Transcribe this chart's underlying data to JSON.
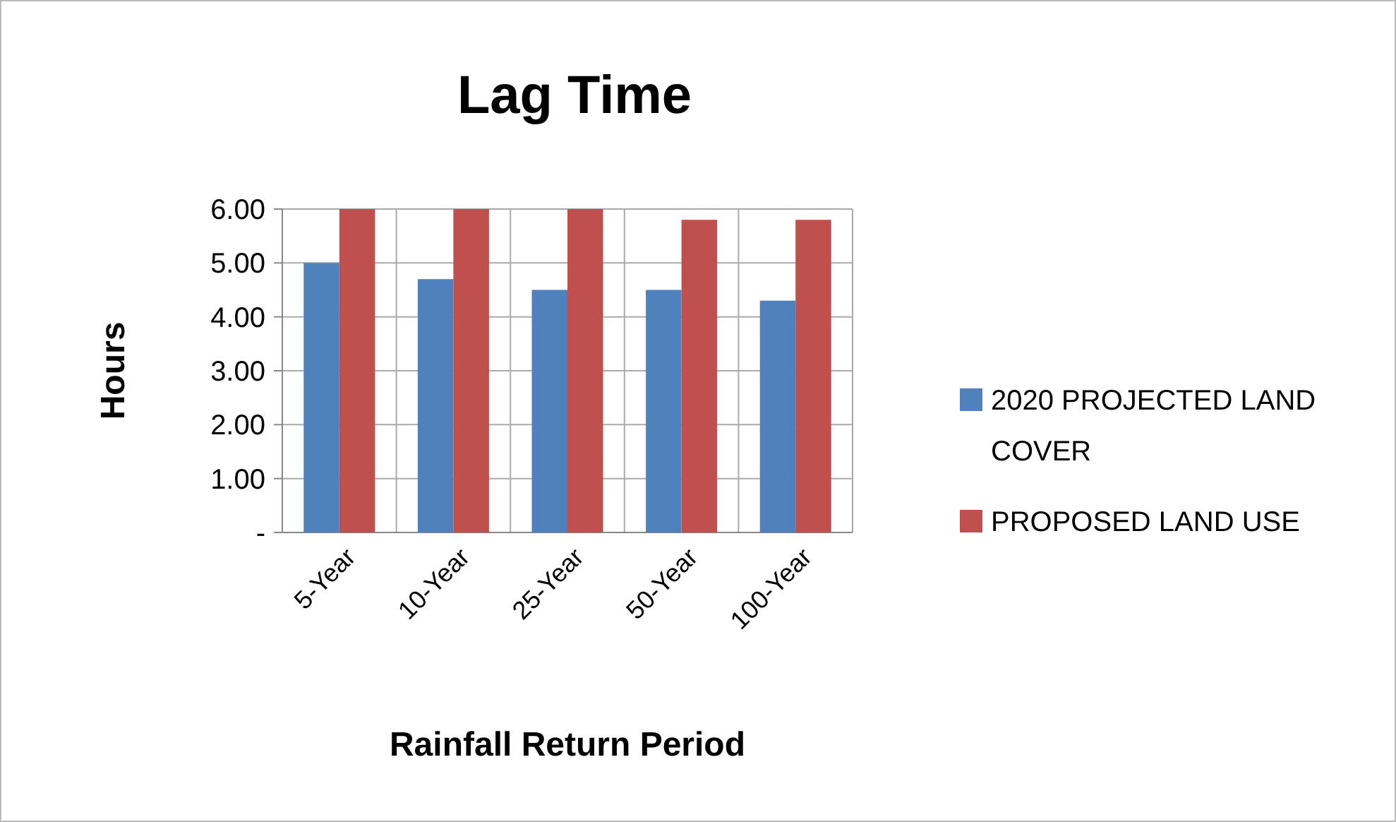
{
  "chart_data": {
    "type": "bar",
    "title": "Lag Time",
    "xlabel": "Rainfall Return Period",
    "ylabel": "Hours",
    "categories": [
      "5-Year",
      "10-Year",
      "25-Year",
      "50-Year",
      "100-Year"
    ],
    "series": [
      {
        "name": "2020 PROJECTED LAND COVER",
        "color": "#4f81bd",
        "values": [
          5.0,
          4.7,
          4.5,
          4.5,
          4.3
        ]
      },
      {
        "name": "PROPOSED LAND USE",
        "color": "#c0504d",
        "values": [
          6.0,
          6.0,
          6.0,
          5.8,
          5.8
        ]
      }
    ],
    "ylim": [
      0,
      6
    ],
    "yticks": [
      {
        "value": 0,
        "label": "-"
      },
      {
        "value": 1,
        "label": "1.00"
      },
      {
        "value": 2,
        "label": "2.00"
      },
      {
        "value": 3,
        "label": "3.00"
      },
      {
        "value": 4,
        "label": "4.00"
      },
      {
        "value": 5,
        "label": "5.00"
      },
      {
        "value": 6,
        "label": "6.00"
      }
    ],
    "grid": true,
    "legend": "right"
  }
}
